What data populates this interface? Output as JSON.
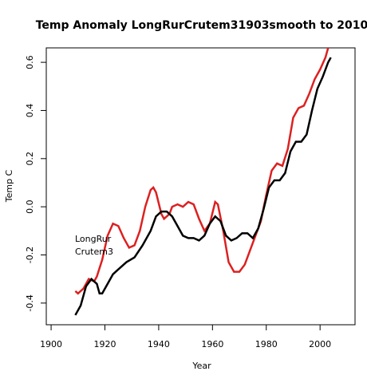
{
  "chart_data": {
    "type": "line",
    "title": "Temp Anomaly  LongRurCrutem31903smooth  to  2010",
    "x_label": "Year",
    "y_label": "Temp C",
    "xlim": [
      1898.2,
      2013
    ],
    "ylim": [
      -0.49,
      0.66
    ],
    "xticks": [
      1900,
      1920,
      1940,
      1960,
      1980,
      2000
    ],
    "yticks": [
      -0.4,
      -0.2,
      {
        "value": 0,
        "label": "0.0"
      },
      0.2,
      0.4,
      0.6
    ],
    "series": [
      {
        "name": "LongRur",
        "color": "#dd2020",
        "x": [
          1909,
          1910,
          1912,
          1914,
          1916,
          1917,
          1919,
          1921,
          1923,
          1925,
          1927,
          1929,
          1931,
          1933,
          1935,
          1937,
          1938,
          1939,
          1941,
          1942,
          1944,
          1945,
          1947,
          1949,
          1951,
          1953,
          1955,
          1957,
          1959,
          1961,
          1962,
          1964,
          1966,
          1968,
          1970,
          1972,
          1974,
          1976,
          1978,
          1980,
          1982,
          1984,
          1986,
          1988,
          1990,
          1992,
          1994,
          1996,
          1998,
          2000,
          2002,
          2003
        ],
        "values": [
          -0.35,
          -0.36,
          -0.34,
          -0.3,
          -0.31,
          -0.29,
          -0.22,
          -0.12,
          -0.07,
          -0.08,
          -0.13,
          -0.17,
          -0.16,
          -0.1,
          0.0,
          0.07,
          0.08,
          0.06,
          -0.03,
          -0.05,
          -0.03,
          0.0,
          0.01,
          0.0,
          0.02,
          0.01,
          -0.05,
          -0.1,
          -0.07,
          0.02,
          0.01,
          -0.1,
          -0.23,
          -0.27,
          -0.27,
          -0.24,
          -0.18,
          -0.12,
          -0.06,
          0.05,
          0.15,
          0.18,
          0.17,
          0.24,
          0.37,
          0.41,
          0.42,
          0.47,
          0.53,
          0.57,
          0.62,
          0.66
        ]
      },
      {
        "name": "Crutem3",
        "color": "#000000",
        "x": [
          1909,
          1911,
          1913,
          1915,
          1917,
          1918,
          1919,
          1921,
          1923,
          1925,
          1928,
          1931,
          1934,
          1937,
          1939,
          1941,
          1943,
          1945,
          1947,
          1949,
          1951,
          1953,
          1955,
          1957,
          1959,
          1961,
          1963,
          1965,
          1967,
          1969,
          1971,
          1973,
          1975,
          1977,
          1979,
          1981,
          1983,
          1985,
          1987,
          1989,
          1991,
          1993,
          1995,
          1997,
          1999,
          2001,
          2003,
          2004
        ],
        "values": [
          -0.45,
          -0.41,
          -0.33,
          -0.3,
          -0.32,
          -0.36,
          -0.36,
          -0.32,
          -0.28,
          -0.26,
          -0.23,
          -0.21,
          -0.16,
          -0.1,
          -0.04,
          -0.02,
          -0.02,
          -0.04,
          -0.08,
          -0.12,
          -0.13,
          -0.13,
          -0.14,
          -0.12,
          -0.07,
          -0.04,
          -0.06,
          -0.12,
          -0.14,
          -0.13,
          -0.11,
          -0.11,
          -0.13,
          -0.09,
          -0.01,
          0.08,
          0.11,
          0.11,
          0.14,
          0.23,
          0.27,
          0.27,
          0.3,
          0.4,
          0.49,
          0.54,
          0.6,
          0.62
        ]
      }
    ]
  }
}
